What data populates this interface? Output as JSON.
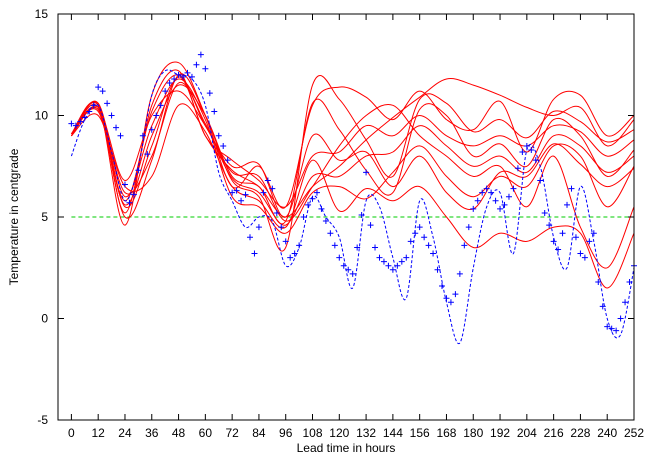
{
  "chart_data": {
    "type": "line",
    "title": "",
    "xlabel": "Lead time in hours",
    "ylabel": "Temperature in centgrade",
    "xlim": [
      -6,
      252
    ],
    "ylim": [
      -5,
      15
    ],
    "xticks": [
      0,
      12,
      24,
      36,
      48,
      60,
      72,
      84,
      96,
      108,
      120,
      132,
      144,
      156,
      168,
      180,
      192,
      204,
      216,
      228,
      240,
      252
    ],
    "yticks": [
      -5,
      0,
      5,
      10,
      15
    ],
    "grid": false,
    "legend": "none",
    "colors": {
      "ensemble": "#ff0000",
      "observations": "#0000ff",
      "reference": "#00cc00"
    },
    "series": [
      {
        "kind": "reference-line",
        "style": "dashed",
        "color": "#00cc00",
        "x": [
          0,
          252
        ],
        "y": [
          5,
          5
        ]
      },
      {
        "kind": "ensemble-member",
        "style": "solid",
        "color": "#ff0000",
        "x": [
          0,
          12,
          24,
          36,
          48,
          60,
          72,
          84,
          96,
          108,
          120,
          132,
          144,
          156,
          168,
          180,
          192,
          204,
          216,
          228,
          240,
          252
        ],
        "y": [
          9.0,
          10.6,
          5.5,
          8.5,
          11.9,
          9.0,
          7.3,
          6.5,
          5.0,
          6.5,
          7.5,
          8.8,
          9.9,
          10.9,
          11.8,
          11.5,
          11.0,
          10.4,
          10.0,
          10.4,
          8.5,
          9.8
        ]
      },
      {
        "kind": "ensemble-member",
        "style": "solid",
        "color": "#ff0000",
        "x": [
          0,
          12,
          24,
          36,
          48,
          60,
          72,
          84,
          96,
          108,
          120,
          132,
          144,
          156,
          168,
          180,
          192,
          204,
          216,
          228,
          240,
          252
        ],
        "y": [
          9.1,
          10.5,
          4.6,
          11.0,
          12.6,
          10.0,
          6.5,
          7.5,
          5.5,
          10.5,
          11.4,
          10.9,
          9.8,
          11.2,
          9.8,
          9.3,
          10.7,
          8.2,
          10.8,
          11.0,
          9.0,
          10.0
        ]
      },
      {
        "kind": "ensemble-member",
        "style": "solid",
        "color": "#ff0000",
        "x": [
          0,
          12,
          24,
          36,
          48,
          60,
          72,
          84,
          96,
          108,
          120,
          132,
          144,
          156,
          168,
          180,
          192,
          204,
          216,
          228,
          240,
          252
        ],
        "y": [
          9.0,
          10.4,
          5.0,
          7.8,
          12.0,
          10.0,
          6.8,
          6.0,
          3.5,
          11.5,
          10.8,
          8.8,
          7.0,
          10.8,
          10.6,
          9.2,
          9.8,
          8.9,
          10.2,
          9.7,
          8.7,
          9.3
        ]
      },
      {
        "kind": "ensemble-member",
        "style": "solid",
        "color": "#ff0000",
        "x": [
          0,
          12,
          24,
          36,
          48,
          60,
          72,
          84,
          96,
          108,
          120,
          132,
          144,
          156,
          168,
          180,
          192,
          204,
          216,
          228,
          240,
          252
        ],
        "y": [
          9.1,
          10.2,
          5.6,
          9.0,
          11.5,
          10.0,
          7.0,
          6.5,
          4.8,
          10.6,
          9.3,
          7.3,
          6.2,
          10.3,
          10.0,
          8.0,
          8.6,
          7.5,
          9.8,
          9.0,
          7.0,
          8.3
        ]
      },
      {
        "kind": "ensemble-member",
        "style": "solid",
        "color": "#ff0000",
        "x": [
          0,
          12,
          24,
          36,
          48,
          60,
          72,
          84,
          96,
          108,
          120,
          132,
          144,
          156,
          168,
          180,
          192,
          204,
          216,
          228,
          240,
          252
        ],
        "y": [
          9.0,
          10.3,
          5.8,
          10.2,
          12.0,
          9.5,
          7.5,
          7.6,
          5.0,
          9.0,
          7.8,
          8.2,
          6.5,
          8.0,
          6.2,
          5.4,
          7.2,
          7.0,
          8.6,
          7.6,
          6.5,
          7.4
        ]
      },
      {
        "kind": "ensemble-member",
        "style": "solid",
        "color": "#ff0000",
        "x": [
          0,
          12,
          24,
          36,
          48,
          60,
          72,
          84,
          96,
          108,
          120,
          132,
          144,
          156,
          168,
          180,
          192,
          204,
          216,
          228,
          240,
          252
        ],
        "y": [
          9.0,
          10.0,
          6.5,
          7.0,
          10.5,
          9.2,
          6.5,
          5.8,
          4.5,
          7.8,
          5.3,
          6.4,
          5.8,
          6.5,
          5.0,
          3.5,
          4.2,
          3.8,
          4.5,
          4.2,
          1.5,
          4.2
        ]
      },
      {
        "kind": "ensemble-member",
        "style": "solid",
        "color": "#ff0000",
        "x": [
          0,
          12,
          24,
          36,
          48,
          60,
          72,
          84,
          96,
          108,
          120,
          132,
          144,
          156,
          168,
          180,
          192,
          204,
          216,
          228,
          240,
          252
        ],
        "y": [
          9.1,
          10.4,
          6.8,
          10.0,
          11.2,
          9.5,
          7.2,
          7.0,
          4.8,
          6.5,
          8.5,
          10.0,
          10.5,
          9.0,
          8.0,
          7.0,
          7.5,
          5.5,
          8.0,
          4.5,
          2.5,
          5.5
        ]
      },
      {
        "kind": "ensemble-member",
        "style": "solid",
        "color": "#ff0000",
        "x": [
          0,
          12,
          24,
          36,
          48,
          60,
          72,
          84,
          96,
          108,
          120,
          132,
          144,
          156,
          168,
          180,
          192,
          204,
          216,
          228,
          240,
          252
        ],
        "y": [
          9.0,
          10.6,
          6.0,
          9.5,
          11.8,
          9.8,
          6.0,
          5.5,
          4.2,
          6.2,
          6.5,
          5.9,
          7.2,
          8.5,
          7.0,
          6.0,
          7.0,
          6.5,
          8.5,
          8.0,
          5.5,
          7.5
        ]
      },
      {
        "kind": "ensemble-member",
        "style": "solid",
        "color": "#ff0000",
        "x": [
          0,
          12,
          24,
          36,
          48,
          60,
          72,
          84,
          96,
          108,
          120,
          132,
          144,
          156,
          168,
          180,
          192,
          204,
          216,
          228,
          240,
          252
        ],
        "y": [
          9.1,
          10.5,
          5.2,
          10.5,
          12.2,
          9.0,
          7.8,
          6.8,
          5.5,
          8.0,
          8.2,
          9.5,
          9.0,
          10.0,
          9.0,
          8.5,
          9.0,
          8.5,
          9.5,
          9.2,
          8.0,
          8.8
        ]
      },
      {
        "kind": "ensemble-member",
        "style": "solid",
        "color": "#ff0000",
        "x": [
          0,
          12,
          24,
          36,
          48,
          60,
          72,
          84,
          96,
          108,
          120,
          132,
          144,
          156,
          168,
          180,
          192,
          204,
          216,
          228,
          240,
          252
        ],
        "y": [
          9.0,
          10.3,
          6.2,
          8.0,
          11.6,
          9.6,
          6.9,
          6.2,
          4.6,
          7.0,
          7.0,
          8.0,
          8.2,
          9.5,
          8.5,
          7.5,
          8.0,
          7.2,
          9.0,
          8.5,
          7.2,
          8.0
        ]
      },
      {
        "kind": "model-forecast",
        "style": "dotted",
        "color": "#0000ff",
        "x": [
          0,
          6,
          12,
          18,
          24,
          30,
          36,
          42,
          48,
          54,
          60,
          66,
          72,
          78,
          84,
          90,
          96,
          102,
          108,
          114,
          120,
          126,
          132,
          138,
          144,
          150,
          156,
          162,
          168,
          174,
          180,
          186,
          192,
          198,
          204,
          210,
          216,
          222,
          228,
          234,
          240,
          246,
          252
        ],
        "y": [
          8.0,
          9.8,
          10.5,
          8.2,
          5.8,
          7.5,
          11.0,
          12.2,
          12.0,
          11.8,
          10.5,
          7.2,
          5.8,
          4.5,
          5.0,
          4.8,
          2.6,
          3.5,
          6.0,
          5.0,
          4.0,
          1.5,
          5.8,
          5.5,
          3.0,
          1.0,
          5.8,
          4.0,
          0.8,
          -1.2,
          2.5,
          5.5,
          6.2,
          3.2,
          8.3,
          7.5,
          4.0,
          2.5,
          6.5,
          3.8,
          0.0,
          -0.8,
          2.5
        ]
      },
      {
        "kind": "observations",
        "style": "plus-markers",
        "color": "#0000ff",
        "x": [
          0,
          2,
          4,
          6,
          8,
          10,
          12,
          14,
          16,
          18,
          20,
          22,
          24,
          26,
          28,
          30,
          32,
          34,
          36,
          38,
          40,
          42,
          44,
          46,
          48,
          50,
          52,
          54,
          56,
          58,
          60,
          62,
          64,
          66,
          68,
          70,
          72,
          74,
          76,
          78,
          80,
          82,
          84,
          86,
          88,
          90,
          92,
          94,
          96,
          98,
          100,
          102,
          104,
          106,
          108,
          110,
          112,
          114,
          116,
          118,
          120,
          122,
          124,
          126,
          128,
          130,
          132,
          134,
          136,
          138,
          140,
          142,
          144,
          146,
          148,
          150,
          152,
          154,
          156,
          158,
          160,
          162,
          164,
          166,
          168,
          170,
          172,
          174,
          176,
          178,
          180,
          182,
          184,
          186,
          188,
          190,
          192,
          194,
          196,
          198,
          200,
          202,
          204,
          206,
          208,
          210,
          212,
          214,
          216,
          218,
          220,
          222,
          224,
          226,
          228,
          230,
          232,
          234,
          236,
          238,
          240,
          242,
          244,
          246,
          248,
          250,
          252
        ],
        "y": [
          9.6,
          9.5,
          9.7,
          9.9,
          10.2,
          10.5,
          11.4,
          11.2,
          10.6,
          10.0,
          9.4,
          9.0,
          6.6,
          5.7,
          6.1,
          7.3,
          9.0,
          8.1,
          9.3,
          10.0,
          10.5,
          11.2,
          11.6,
          11.8,
          12.0,
          11.9,
          12.1,
          11.9,
          12.5,
          13.0,
          12.3,
          11.1,
          10.2,
          9.0,
          8.5,
          7.8,
          6.2,
          6.3,
          5.8,
          6.1,
          4.0,
          3.2,
          4.5,
          6.2,
          6.8,
          6.4,
          5.2,
          4.5,
          3.8,
          3.0,
          3.2,
          3.6,
          5.0,
          5.6,
          5.9,
          6.2,
          5.4,
          4.8,
          4.2,
          3.6,
          3.0,
          2.6,
          2.4,
          2.2,
          3.5,
          5.1,
          7.2,
          4.6,
          3.5,
          3.0,
          2.8,
          2.6,
          2.4,
          2.6,
          2.8,
          3.0,
          3.8,
          4.2,
          4.5,
          4.0,
          3.6,
          3.2,
          2.4,
          1.6,
          1.0,
          0.8,
          1.2,
          2.2,
          3.6,
          4.5,
          5.4,
          5.8,
          6.2,
          6.4,
          6.2,
          5.8,
          5.4,
          5.6,
          6.0,
          6.4,
          7.4,
          8.2,
          8.5,
          8.3,
          7.8,
          6.8,
          5.2,
          4.6,
          3.8,
          3.4,
          4.2,
          5.6,
          6.4,
          4.0,
          3.2,
          3.0,
          3.8,
          4.2,
          1.8,
          0.6,
          -0.4,
          -0.5,
          -0.6,
          0.0,
          0.8,
          1.8,
          2.6
        ]
      }
    ]
  }
}
